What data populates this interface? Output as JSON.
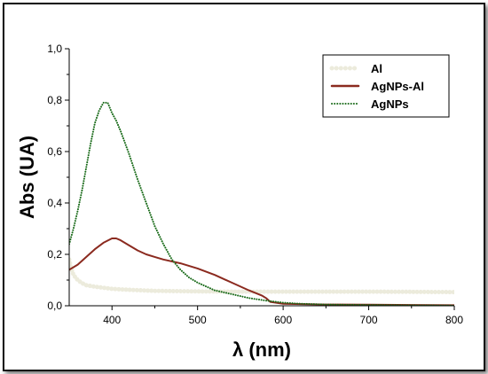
{
  "chart_data": {
    "type": "line",
    "title": "",
    "xlabel": "λ (nm)",
    "ylabel": "Abs (UA)",
    "xlim": [
      350,
      800
    ],
    "ylim": [
      0.0,
      1.0
    ],
    "x_ticks": [
      "400",
      "500",
      "600",
      "700",
      "800"
    ],
    "x_tick_values": [
      400,
      500,
      600,
      700,
      800
    ],
    "y_ticks": [
      "0,0",
      "0,2",
      "0,4",
      "0,6",
      "0,8",
      "1,0"
    ],
    "y_tick_values": [
      0.0,
      0.2,
      0.4,
      0.6,
      0.8,
      1.0
    ],
    "grid": false,
    "legend_position": "top-right",
    "series": [
      {
        "name": "Al",
        "color": "#ecebdc",
        "style": "thick-dotted",
        "x": [
          350,
          352,
          355,
          360,
          365,
          370,
          380,
          390,
          400,
          420,
          450,
          500,
          550,
          600,
          650,
          700,
          750,
          800
        ],
        "y": [
          0.18,
          0.15,
          0.12,
          0.1,
          0.088,
          0.08,
          0.074,
          0.07,
          0.066,
          0.062,
          0.058,
          0.056,
          0.055,
          0.055,
          0.055,
          0.055,
          0.054,
          0.053
        ]
      },
      {
        "name": "AgNPs-Al",
        "color": "#8b2a1f",
        "style": "solid",
        "x": [
          350,
          360,
          370,
          380,
          390,
          400,
          405,
          410,
          420,
          430,
          440,
          450,
          460,
          480,
          500,
          520,
          540,
          560,
          575,
          580,
          585,
          600,
          650,
          700,
          750,
          800
        ],
        "y": [
          0.14,
          0.16,
          0.19,
          0.22,
          0.245,
          0.262,
          0.262,
          0.255,
          0.235,
          0.215,
          0.2,
          0.19,
          0.18,
          0.165,
          0.145,
          0.12,
          0.09,
          0.06,
          0.04,
          0.03,
          0.015,
          0.008,
          0.005,
          0.004,
          0.003,
          0.002
        ]
      },
      {
        "name": "AgNPs",
        "color": "#1a6b1a",
        "style": "dotted",
        "x": [
          350,
          355,
          360,
          365,
          370,
          375,
          380,
          385,
          390,
          395,
          400,
          405,
          410,
          420,
          430,
          440,
          450,
          460,
          470,
          480,
          490,
          500,
          520,
          540,
          560,
          580,
          600,
          620,
          650,
          700,
          750,
          800
        ],
        "y": [
          0.24,
          0.3,
          0.37,
          0.45,
          0.54,
          0.63,
          0.71,
          0.76,
          0.79,
          0.79,
          0.75,
          0.72,
          0.68,
          0.59,
          0.49,
          0.4,
          0.31,
          0.24,
          0.18,
          0.14,
          0.11,
          0.09,
          0.06,
          0.045,
          0.03,
          0.02,
          0.012,
          0.008,
          0.005,
          0.003,
          0.002,
          0.001
        ]
      }
    ]
  }
}
